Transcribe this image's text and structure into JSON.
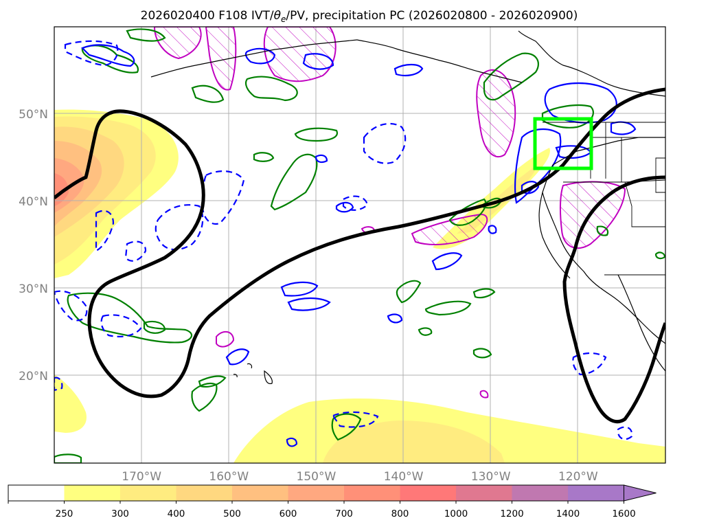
{
  "figure": {
    "title": "2026020400 F108 IVT/θe/PV, precipitation PC (2026020800 - 2026020900)",
    "title_parts": {
      "prefix": "2026020400 F108 IVT/",
      "theta": "θ",
      "sub": "e",
      "suffix": "/PV, precipitation PC (2026020800 - 2026020900)"
    }
  },
  "map": {
    "lon_ticks": [
      "170°W",
      "160°W",
      "150°W",
      "140°W",
      "130°W",
      "120°W"
    ],
    "lat_ticks": [
      "50°N",
      "40°N",
      "30°N",
      "20°N"
    ],
    "lon_range": [
      -180,
      -110
    ],
    "lat_range": [
      10,
      60
    ],
    "box_color": "#00ff00",
    "contour_colors": {
      "thick": "#000000",
      "solid_blue": "#0000ff",
      "green": "#008000",
      "magenta": "#c000c0"
    }
  },
  "colorbar": {
    "labels": [
      "250",
      "300",
      "400",
      "500",
      "600",
      "700",
      "800",
      "1000",
      "1200",
      "1400",
      "1600"
    ],
    "colors": [
      "#ffffff",
      "#ffff80",
      "#ffec80",
      "#ffd880",
      "#ffc080",
      "#ffa880",
      "#ff9078",
      "#ff7878",
      "#e07890",
      "#c078b0",
      "#a878c8"
    ]
  }
}
